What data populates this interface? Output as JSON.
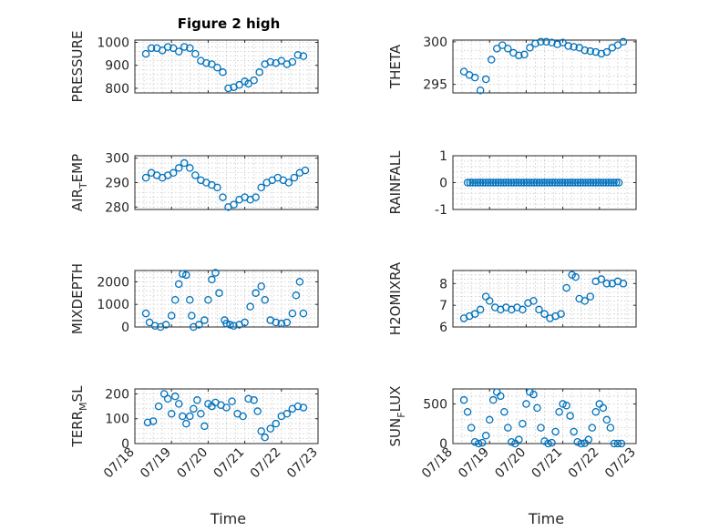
{
  "figure": {
    "title": "Figure 2 high"
  },
  "chart_data": [
    {
      "id": "pressure",
      "type": "scatter",
      "title": "Figure 2 high",
      "ylabel": "PRESSURE",
      "xlabel": "",
      "xlim": [
        0,
        5
      ],
      "ylim": [
        780,
        1010
      ],
      "yticks": [
        800,
        900,
        1000
      ],
      "xtick_labels": [],
      "color": "#0072BD",
      "grid": true,
      "x": [
        0.3,
        0.45,
        0.6,
        0.75,
        0.9,
        1.05,
        1.2,
        1.35,
        1.5,
        1.65,
        1.8,
        1.95,
        2.1,
        2.25,
        2.4,
        2.55,
        2.7,
        2.85,
        3.0,
        3.1,
        3.25,
        3.4,
        3.55,
        3.7,
        3.85,
        4.0,
        4.15,
        4.3,
        4.45,
        4.6
      ],
      "y": [
        950,
        975,
        975,
        965,
        980,
        975,
        960,
        980,
        975,
        950,
        920,
        910,
        905,
        890,
        870,
        800,
        805,
        815,
        830,
        820,
        835,
        870,
        905,
        915,
        910,
        920,
        905,
        915,
        945,
        940
      ]
    },
    {
      "id": "theta",
      "type": "scatter",
      "title": "",
      "ylabel": "THETA",
      "xlabel": "",
      "xlim": [
        0,
        5
      ],
      "ylim": [
        294,
        300.2
      ],
      "yticks": [
        295,
        300
      ],
      "xtick_labels": [],
      "color": "#0072BD",
      "grid": true,
      "x": [
        0.3,
        0.45,
        0.6,
        0.75,
        0.9,
        1.05,
        1.2,
        1.35,
        1.5,
        1.65,
        1.8,
        1.95,
        2.1,
        2.25,
        2.4,
        2.55,
        2.7,
        2.85,
        3.0,
        3.15,
        3.3,
        3.45,
        3.6,
        3.75,
        3.9,
        4.05,
        4.2,
        4.35,
        4.5,
        4.65
      ],
      "y": [
        296.5,
        296.1,
        295.8,
        294.3,
        295.6,
        297.9,
        299.2,
        299.6,
        299.2,
        298.7,
        298.4,
        298.5,
        299.3,
        299.8,
        300.0,
        300.0,
        299.9,
        299.7,
        299.9,
        299.5,
        299.4,
        299.3,
        299.0,
        298.9,
        298.8,
        298.6,
        298.8,
        299.3,
        299.6,
        300.0
      ]
    },
    {
      "id": "air_temp",
      "type": "scatter",
      "title": "",
      "ylabel": "AIR",
      "ylabel_sub": "T",
      "ylabel_rest": "EMP",
      "xlabel": "",
      "xlim": [
        0,
        5
      ],
      "ylim": [
        279,
        301
      ],
      "yticks": [
        280,
        290,
        300
      ],
      "xtick_labels": [],
      "color": "#0072BD",
      "grid": true,
      "x": [
        0.3,
        0.45,
        0.6,
        0.75,
        0.9,
        1.05,
        1.2,
        1.35,
        1.5,
        1.65,
        1.8,
        1.95,
        2.1,
        2.25,
        2.4,
        2.55,
        2.7,
        2.85,
        3.0,
        3.15,
        3.3,
        3.45,
        3.6,
        3.75,
        3.9,
        4.05,
        4.2,
        4.35,
        4.5,
        4.65
      ],
      "y": [
        292,
        294,
        293,
        292,
        293,
        294,
        296,
        298,
        296,
        293,
        291,
        290,
        289,
        288,
        284,
        280,
        281,
        283,
        284,
        283,
        284,
        288,
        290,
        291,
        292,
        291,
        290,
        292,
        294,
        295
      ]
    },
    {
      "id": "rainfall",
      "type": "scatter",
      "title": "",
      "ylabel": "RAINFALL",
      "xlabel": "",
      "xlim": [
        0,
        5
      ],
      "ylim": [
        -1,
        1
      ],
      "yticks": [
        -1,
        0,
        1
      ],
      "xtick_labels": [],
      "color": "#0072BD",
      "grid": true,
      "x_start": 0.4,
      "x_end": 4.55,
      "x_step": 0.07,
      "constant_y": 0
    },
    {
      "id": "mixdepth",
      "type": "scatter",
      "title": "",
      "ylabel": "MIXDEPTH",
      "xlabel": "",
      "xlim": [
        0,
        5
      ],
      "ylim": [
        0,
        2500
      ],
      "yticks": [
        0,
        1000,
        2000
      ],
      "xtick_labels": [],
      "color": "#0072BD",
      "grid": true,
      "x": [
        0.3,
        0.4,
        0.55,
        0.7,
        0.85,
        1.0,
        1.1,
        1.2,
        1.3,
        1.4,
        1.5,
        1.55,
        1.6,
        1.75,
        1.9,
        2.0,
        2.1,
        2.2,
        2.3,
        2.45,
        2.5,
        2.6,
        2.7,
        2.85,
        3.0,
        3.15,
        3.3,
        3.45,
        3.55,
        3.7,
        3.85,
        4.0,
        4.15,
        4.3,
        4.4,
        4.5,
        4.6
      ],
      "y": [
        600,
        200,
        50,
        0,
        100,
        500,
        1200,
        1900,
        2350,
        2300,
        1200,
        500,
        0,
        100,
        300,
        1200,
        2100,
        2400,
        1500,
        300,
        150,
        100,
        50,
        100,
        200,
        900,
        1500,
        1800,
        1200,
        300,
        200,
        150,
        200,
        600,
        1400,
        2000,
        600
      ]
    },
    {
      "id": "h2omixra",
      "type": "scatter",
      "title": "",
      "ylabel": "H2OMIXRA",
      "xlabel": "",
      "xlim": [
        0,
        5
      ],
      "ylim": [
        6,
        8.6
      ],
      "yticks": [
        6,
        7,
        8
      ],
      "xtick_labels": [],
      "color": "#0072BD",
      "grid": true,
      "x": [
        0.3,
        0.45,
        0.6,
        0.75,
        0.9,
        1.0,
        1.15,
        1.3,
        1.45,
        1.6,
        1.75,
        1.9,
        2.05,
        2.2,
        2.35,
        2.5,
        2.65,
        2.8,
        2.95,
        3.1,
        3.25,
        3.35,
        3.45,
        3.6,
        3.75,
        3.9,
        4.05,
        4.2,
        4.35,
        4.5,
        4.65
      ],
      "y": [
        6.4,
        6.5,
        6.6,
        6.8,
        7.4,
        7.2,
        6.9,
        6.8,
        6.9,
        6.8,
        6.9,
        6.8,
        7.1,
        7.2,
        6.8,
        6.6,
        6.4,
        6.5,
        6.6,
        7.8,
        8.4,
        8.3,
        7.3,
        7.2,
        7.4,
        8.1,
        8.2,
        8.0,
        8.0,
        8.1,
        8.0
      ]
    },
    {
      "id": "terr_msl",
      "type": "scatter",
      "title": "",
      "ylabel": "TERR",
      "ylabel_sub": "M",
      "ylabel_rest": "SL",
      "xlabel": "Time",
      "xlim": [
        0,
        5
      ],
      "ylim": [
        0,
        220
      ],
      "yticks": [
        0,
        100,
        200
      ],
      "xtick_labels": [
        "07/18",
        "07/19",
        "07/20",
        "07/21",
        "07/22",
        "07/23"
      ],
      "color": "#0072BD",
      "grid": true,
      "x": [
        0.35,
        0.5,
        0.65,
        0.8,
        0.9,
        1.0,
        1.1,
        1.2,
        1.3,
        1.4,
        1.5,
        1.6,
        1.7,
        1.8,
        1.9,
        2.0,
        2.1,
        2.2,
        2.35,
        2.5,
        2.65,
        2.8,
        2.95,
        3.1,
        3.25,
        3.35,
        3.45,
        3.55,
        3.7,
        3.85,
        4.0,
        4.15,
        4.3,
        4.45,
        4.6
      ],
      "y": [
        85,
        90,
        150,
        200,
        180,
        120,
        190,
        160,
        110,
        80,
        110,
        140,
        175,
        120,
        70,
        160,
        150,
        165,
        155,
        145,
        170,
        120,
        110,
        180,
        175,
        130,
        50,
        25,
        60,
        80,
        110,
        120,
        140,
        150,
        145
      ]
    },
    {
      "id": "sun_flux",
      "type": "scatter",
      "title": "",
      "ylabel": "SUN",
      "ylabel_sub": "F",
      "ylabel_rest": "LUX",
      "xlabel": "Time",
      "xlim": [
        0,
        5
      ],
      "ylim": [
        0,
        690
      ],
      "yticks": [
        0,
        500
      ],
      "xtick_labels": [
        "07/18",
        "07/19",
        "07/20",
        "07/21",
        "07/22",
        "07/23"
      ],
      "color": "#0072BD",
      "grid": true,
      "x": [
        0.3,
        0.4,
        0.5,
        0.6,
        0.7,
        0.8,
        0.9,
        1.0,
        1.1,
        1.2,
        1.3,
        1.4,
        1.5,
        1.6,
        1.7,
        1.8,
        1.9,
        2.0,
        2.1,
        2.2,
        2.3,
        2.4,
        2.5,
        2.6,
        2.7,
        2.8,
        2.9,
        3.0,
        3.1,
        3.2,
        3.3,
        3.4,
        3.5,
        3.6,
        3.7,
        3.8,
        3.9,
        4.0,
        4.1,
        4.2,
        4.3,
        4.4,
        4.5,
        4.6
      ],
      "y": [
        550,
        400,
        200,
        20,
        0,
        10,
        100,
        300,
        550,
        650,
        600,
        400,
        200,
        20,
        0,
        50,
        250,
        500,
        650,
        620,
        450,
        200,
        30,
        0,
        10,
        150,
        400,
        500,
        480,
        350,
        150,
        20,
        0,
        5,
        50,
        200,
        400,
        500,
        450,
        300,
        200,
        0,
        0,
        0
      ]
    }
  ]
}
